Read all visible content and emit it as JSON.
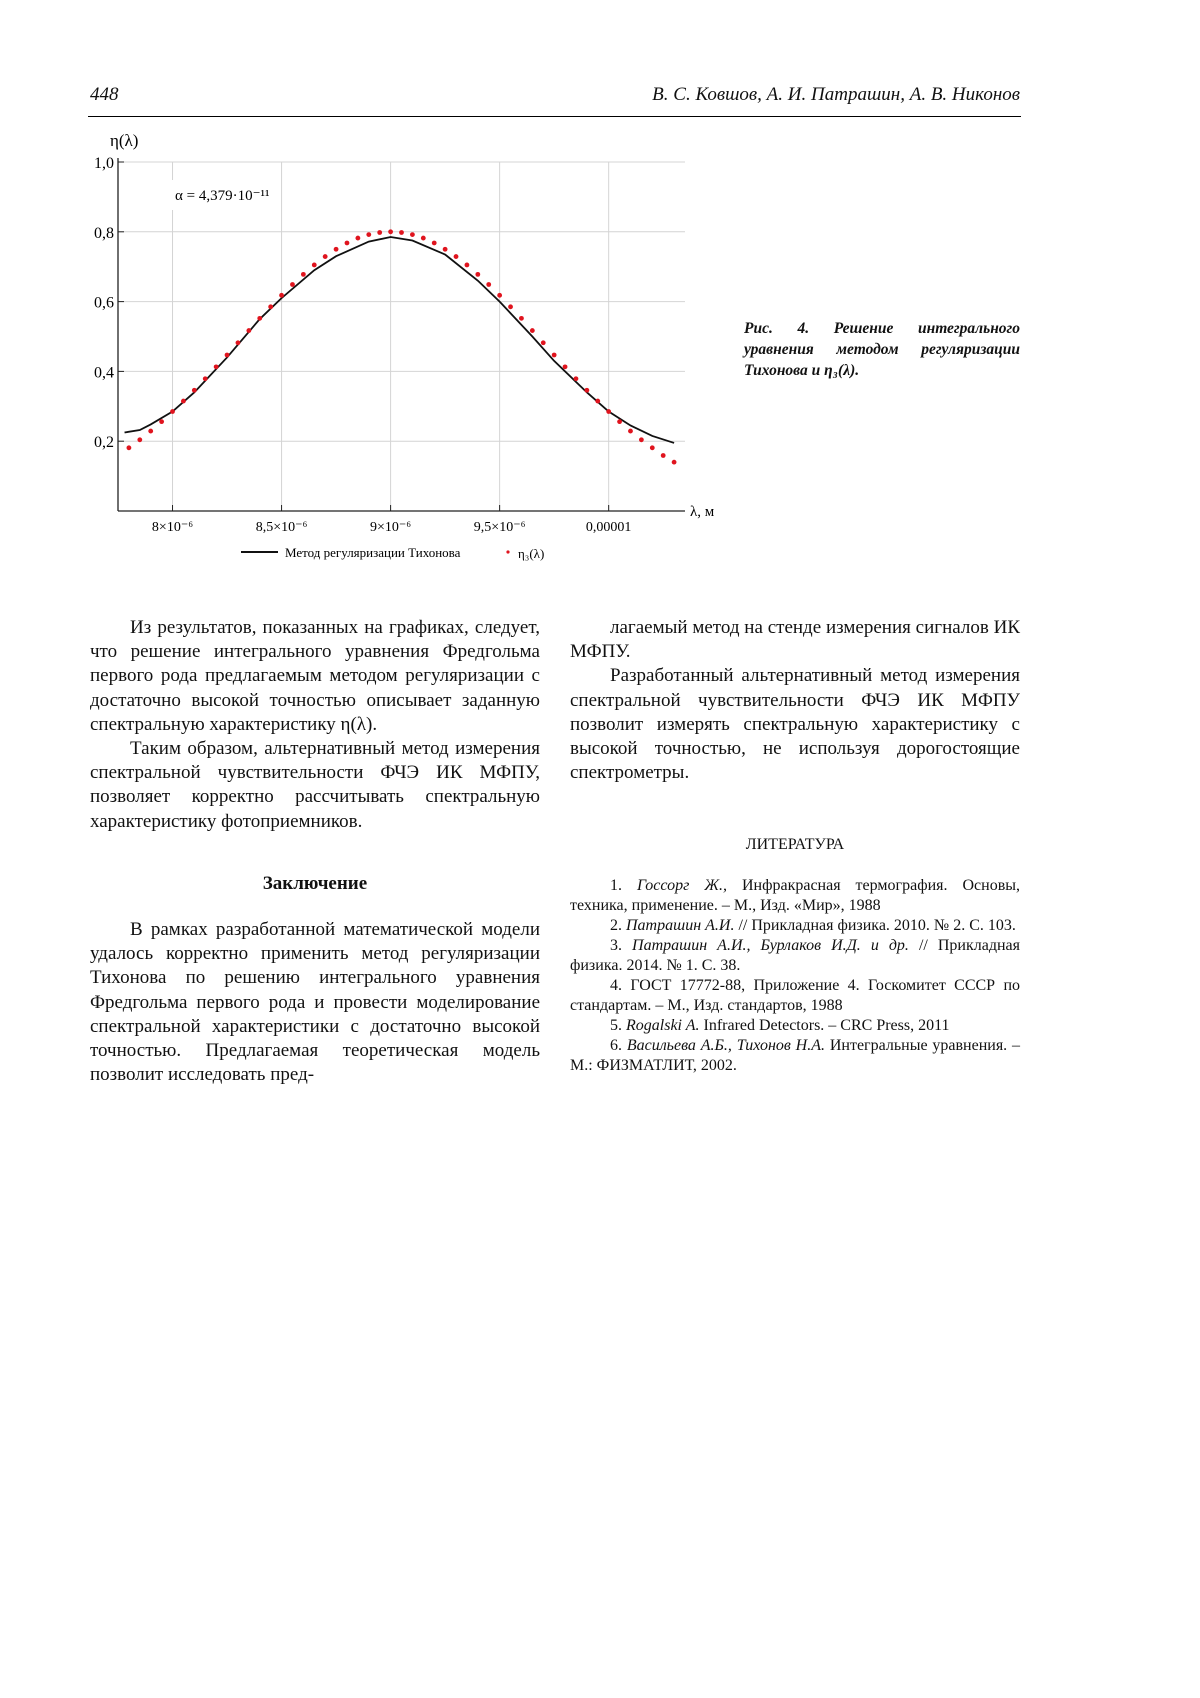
{
  "header": {
    "page_number": "448",
    "authors": "В. С. Ковшов, А. И. Патрашин, А. В. Никонов"
  },
  "figure": {
    "caption_prefix": "Рис. 4.",
    "caption_text": "Решение интегрального уравнения методом регуляризации Тихонова и η₃(λ)."
  },
  "chart_data": {
    "type": "line",
    "title": "",
    "annotation": "α = 4,379·10⁻¹¹",
    "xlabel": "λ, м",
    "ylabel": "η(λ)",
    "xlim": [
      7.75e-06,
      1.035e-05
    ],
    "ylim": [
      0,
      1.0
    ],
    "x_ticks": [
      8e-06,
      8.5e-06,
      9e-06,
      9.5e-06,
      1e-05
    ],
    "x_tick_labels": [
      "8×10⁻⁶",
      "8,5×10⁻⁶",
      "9×10⁻⁶",
      "9,5×10⁻⁶",
      "0,00001"
    ],
    "y_ticks": [
      0.2,
      0.4,
      0.6,
      0.8,
      1.0
    ],
    "y_tick_labels": [
      "0,2",
      "0,4",
      "0,6",
      "0,8",
      "1,0"
    ],
    "grid": true,
    "legend_position": "bottom",
    "series": [
      {
        "name": "Метод регуляризации Тихонова",
        "style": "line",
        "color": "#111111",
        "x": [
          7.78e-06,
          7.85e-06,
          7.9e-06,
          8e-06,
          8.1e-06,
          8.25e-06,
          8.4e-06,
          8.5e-06,
          8.65e-06,
          8.75e-06,
          8.9e-06,
          9e-06,
          9.1e-06,
          9.25e-06,
          9.4e-06,
          9.5e-06,
          9.65e-06,
          9.75e-06,
          9.9e-06,
          1e-05,
          1.01e-05,
          1.02e-05,
          1.03e-05
        ],
        "y": [
          0.225,
          0.232,
          0.248,
          0.285,
          0.34,
          0.44,
          0.55,
          0.61,
          0.69,
          0.73,
          0.772,
          0.785,
          0.775,
          0.735,
          0.66,
          0.6,
          0.5,
          0.43,
          0.34,
          0.285,
          0.245,
          0.215,
          0.195
        ]
      },
      {
        "name": "η₃(λ)",
        "style": "points",
        "color": "#e0141e",
        "x": [
          7.8e-06,
          7.85e-06,
          7.9e-06,
          7.95e-06,
          8e-06,
          8.05e-06,
          8.1e-06,
          8.15e-06,
          8.2e-06,
          8.25e-06,
          8.3e-06,
          8.35e-06,
          8.4e-06,
          8.45e-06,
          8.5e-06,
          8.55e-06,
          8.6e-06,
          8.65e-06,
          8.7e-06,
          8.75e-06,
          8.8e-06,
          8.85e-06,
          8.9e-06,
          8.95e-06,
          9e-06,
          9.05e-06,
          9.1e-06,
          9.15e-06,
          9.2e-06,
          9.25e-06,
          9.3e-06,
          9.35e-06,
          9.4e-06,
          9.45e-06,
          9.5e-06,
          9.55e-06,
          9.6e-06,
          9.65e-06,
          9.7e-06,
          9.75e-06,
          9.8e-06,
          9.85e-06,
          9.9e-06,
          9.95e-06,
          1e-05,
          1.005e-05,
          1.01e-05,
          1.015e-05,
          1.02e-05,
          1.025e-05,
          1.03e-05
        ],
        "y": [
          0.181,
          0.204,
          0.229,
          0.256,
          0.285,
          0.315,
          0.346,
          0.379,
          0.413,
          0.447,
          0.482,
          0.517,
          0.552,
          0.585,
          0.618,
          0.649,
          0.678,
          0.705,
          0.729,
          0.75,
          0.768,
          0.782,
          0.792,
          0.798,
          0.8,
          0.798,
          0.792,
          0.782,
          0.768,
          0.75,
          0.729,
          0.705,
          0.678,
          0.649,
          0.618,
          0.585,
          0.552,
          0.517,
          0.482,
          0.447,
          0.413,
          0.379,
          0.346,
          0.315,
          0.285,
          0.256,
          0.229,
          0.204,
          0.181,
          0.159,
          0.14
        ]
      }
    ]
  },
  "left_column": {
    "p1": "Из результатов, показанных на графиках, следует, что решение интегрального уравнения Фредгольма первого рода предлагаемым методом регуляризации с достаточно высокой точностью описывает заданную спектральную характеристику η(λ).",
    "p2": "Таким образом, альтернативный метод измерения спектральной чувствительности ФЧЭ ИК МФПУ, позволяет корректно рассчитывать спектральную характеристику фотоприемников.",
    "conclusion_title": "Заключение",
    "p3": "В рамках разработанной математической модели удалось корректно применить метод регуляризации Тихонова по решению интегрального уравнения Фредгольма первого рода и провести моделирование спектральной характеристики с достаточно высокой точностью. Предлагаемая теоретическая модель позволит исследовать пред-"
  },
  "right_column": {
    "p1": "лагаемый метод на стенде измерения сигналов ИК МФПУ.",
    "p2": "Разработанный альтернативный метод измерения спектральной чувствительности ФЧЭ ИК МФПУ позволит измерять спектральную характеристику с высокой точностью, не используя дорогостоящие спектрометры.",
    "references_title": "ЛИТЕРАТУРА",
    "references": [
      {
        "num": "1.",
        "authors": "Госсорг Ж.,",
        "text": " Инфракрасная термография. Основы, техника, применение. – М., Изд. «Мир», 1988"
      },
      {
        "num": "2.",
        "authors": "Патрашин А.И.",
        "text": " // Прикладная физика. 2010. № 2. С. 103."
      },
      {
        "num": "3.",
        "authors": "Патрашин А.И., Бурлаков И.Д. и др.",
        "text": " // Прикладная физика. 2014. № 1. С. 38."
      },
      {
        "num": "4.",
        "authors": "",
        "text": "ГОСТ 17772-88, Приложение 4. Госкомитет СССР по стандартам. – М., Изд. стандартов, 1988"
      },
      {
        "num": "5.",
        "authors": "Rogalski A.",
        "text": " Infrared Detectors. – CRC Press, 2011"
      },
      {
        "num": "6.",
        "authors": "Васильева А.Б., Тихонов Н.А.",
        "text": " Интегральные уравнения. – М.: ФИЗМАТЛИТ, 2002."
      }
    ]
  }
}
